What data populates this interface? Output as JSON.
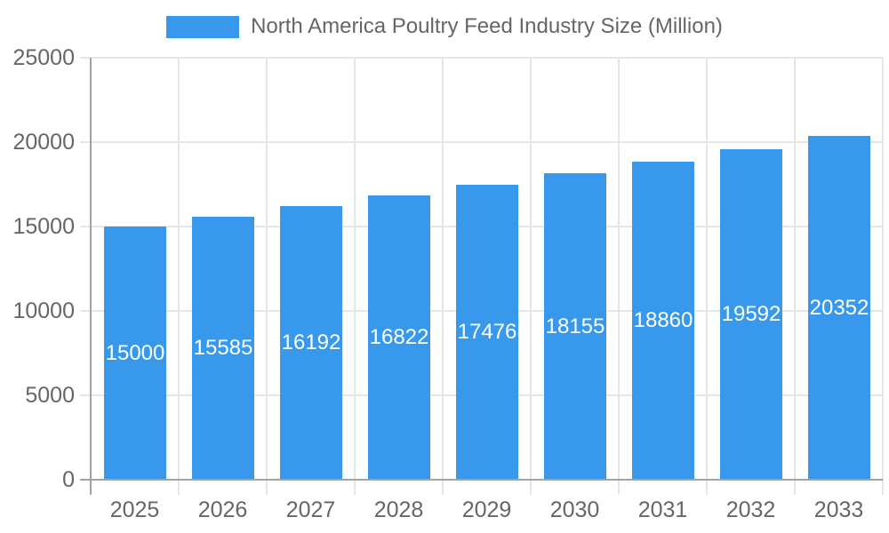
{
  "legend": {
    "label": "North America Poultry Feed Industry Size (Million)"
  },
  "chart_data": {
    "type": "bar",
    "title": "North America Poultry Feed Industry Size (Million)",
    "series_name": "North America Poultry Feed Industry Size (Million)",
    "categories": [
      "2025",
      "2026",
      "2027",
      "2028",
      "2029",
      "2030",
      "2031",
      "2032",
      "2033"
    ],
    "values": [
      15000,
      15585,
      16192,
      16822,
      17476,
      18155,
      18860,
      19592,
      20352
    ],
    "bar_labels": [
      "15000",
      "15585",
      "16192",
      "16822",
      "17476",
      "18155",
      "18860",
      "19592",
      "20352"
    ],
    "xlabel": "",
    "ylabel": "",
    "ylim": [
      0,
      25000
    ],
    "yticks": [
      0,
      5000,
      10000,
      15000,
      20000,
      25000
    ],
    "ytick_labels": [
      "0",
      "5000",
      "10000",
      "15000",
      "20000",
      "25000"
    ],
    "grid": true,
    "legend_position": "top",
    "colors": {
      "bar": "#3899EC",
      "bar_label": "#FFFFFF",
      "axis_text": "#666666",
      "gridline": "#E6E6E6",
      "zero_line": "#A3A3A3",
      "background": "#FFFFFF"
    }
  }
}
